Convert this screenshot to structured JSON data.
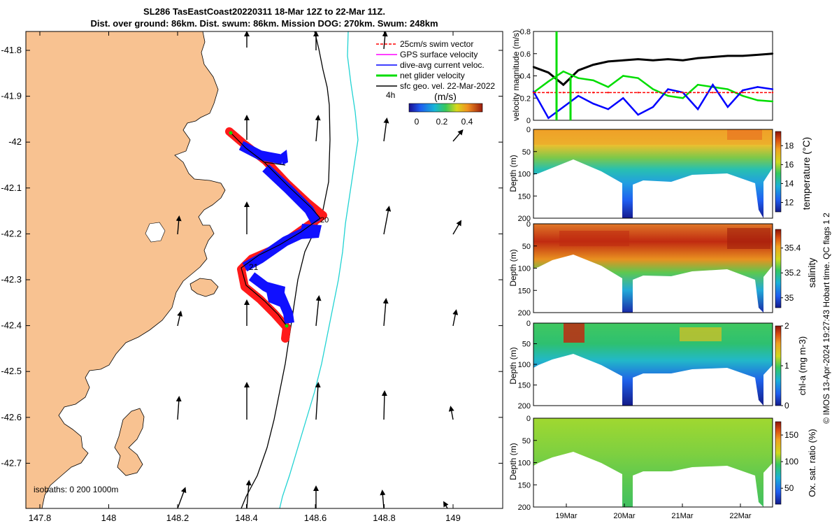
{
  "title": {
    "line1": "SL286 TasEastCoast20220311 18-Mar 12Z to 22-Mar 11Z.",
    "line2": "Dist. over ground: 86km. Dist. swum: 86km. Mission DOG: 270km. Swum: 248km"
  },
  "colors": {
    "land": "#f8c291",
    "ocean": "#ffffff",
    "glider_track": "#ff0000",
    "dive_current": "#0000ff",
    "net_velocity": "#00dd00",
    "surface_geo": "#000000",
    "isobath_200": "#000000",
    "isobath_1000": "#22d3d3"
  },
  "map": {
    "x_ticks": [
      "147.8",
      "148",
      "148.2",
      "148.4",
      "148.6",
      "148.8",
      "149"
    ],
    "y_ticks": [
      "-41.8",
      "-41.9",
      "-42",
      "-42.1",
      "-42.2",
      "-42.3",
      "-42.4",
      "-42.5",
      "-42.6",
      "-42.7"
    ],
    "isobaths_label": "isobaths: 0   200  1000m",
    "time_labels": [
      "4h",
      "21",
      "20"
    ],
    "legend": [
      {
        "label": "25cm/s swim vector",
        "color": "#ff0000"
      },
      {
        "label": "GPS surface velocity",
        "color": "#ff00ff"
      },
      {
        "label": "dive-avg current veloc.",
        "color": "#0000ff"
      },
      {
        "label": "net glider velocity",
        "color": "#00dd00"
      },
      {
        "label": "sfc geo. vel. 22-Mar-2022",
        "color": "#000000"
      }
    ],
    "colorbar": {
      "title": "(m/s)",
      "ticks": [
        "0",
        "0.2",
        "0.4"
      ]
    }
  },
  "chart_data": [
    {
      "type": "line",
      "title": "",
      "ylabel": "velocity magnitude (m/s)",
      "ylim": [
        0,
        0.8
      ],
      "yticks": [
        "0",
        "0.2",
        "0.4",
        "0.6",
        "0.8"
      ],
      "x": [
        0,
        0.25,
        0.5,
        0.75,
        1.0,
        1.25,
        1.5,
        1.75,
        2.0,
        2.25,
        2.5,
        2.75,
        3.0,
        3.25,
        3.5,
        3.75,
        4.0
      ],
      "series": [
        {
          "name": "sfc geo. vel.",
          "color": "#000000",
          "values": [
            0.48,
            0.43,
            0.32,
            0.45,
            0.5,
            0.53,
            0.54,
            0.55,
            0.54,
            0.55,
            0.54,
            0.56,
            0.57,
            0.58,
            0.58,
            0.59,
            0.6
          ]
        },
        {
          "name": "net glider velocity",
          "color": "#00dd00",
          "values": [
            0.25,
            0.35,
            0.44,
            0.38,
            0.36,
            0.3,
            0.4,
            0.38,
            0.28,
            0.22,
            0.2,
            0.32,
            0.3,
            0.28,
            0.22,
            0.18,
            0.17
          ]
        },
        {
          "name": "dive-avg current",
          "color": "#0000ff",
          "values": [
            0.26,
            0.02,
            0.12,
            0.22,
            0.15,
            0.1,
            0.2,
            0.05,
            0.12,
            0.28,
            0.25,
            0.1,
            0.32,
            0.12,
            0.27,
            0.3,
            0.28
          ]
        },
        {
          "name": "25cm/s swim",
          "color": "#ff0000",
          "values": [
            0.25,
            0.25,
            0.25,
            0.25,
            0.25,
            0.25,
            0.25,
            0.25,
            0.25,
            0.25,
            0.25,
            0.25,
            0.25,
            0.25,
            0.25,
            0.25,
            0.25
          ]
        }
      ]
    },
    {
      "type": "heatmap",
      "title": "temperature",
      "ylabel": "Depth (m)",
      "ylim": [
        200,
        0
      ],
      "yticks": [
        "0",
        "50",
        "100",
        "150",
        "200"
      ],
      "colorbar_label": "temperature (°C)",
      "colorbar_ticks": [
        "12",
        "14",
        "16",
        "18"
      ]
    },
    {
      "type": "heatmap",
      "title": "salinity",
      "ylabel": "Depth (m)",
      "ylim": [
        200,
        0
      ],
      "yticks": [
        "0",
        "50",
        "100",
        "150",
        "200"
      ],
      "colorbar_label": "salinity",
      "colorbar_ticks": [
        "35",
        "35.2",
        "35.4"
      ]
    },
    {
      "type": "heatmap",
      "title": "chlorophyll",
      "ylabel": "Depth (m)",
      "ylim": [
        200,
        0
      ],
      "yticks": [
        "0",
        "50",
        "100",
        "150",
        "200"
      ],
      "colorbar_label": "chl-a (mg m-3)",
      "colorbar_ticks": [
        "0",
        "1",
        "2"
      ]
    },
    {
      "type": "heatmap",
      "title": "oxygen saturation",
      "ylabel": "Depth (m)",
      "ylim": [
        200,
        0
      ],
      "yticks": [
        "0",
        "50",
        "100",
        "150",
        "200"
      ],
      "colorbar_label": "Ox. sat. ratio (%)",
      "colorbar_ticks": [
        "50",
        "100",
        "150"
      ],
      "x_ticks": [
        "19Mar",
        "20Mar",
        "21Mar",
        "22Mar"
      ]
    }
  ],
  "footer": {
    "credit": "© IMOS 13-Apr-2024 19:27:43 Hobart time. QC flags 1  2"
  }
}
